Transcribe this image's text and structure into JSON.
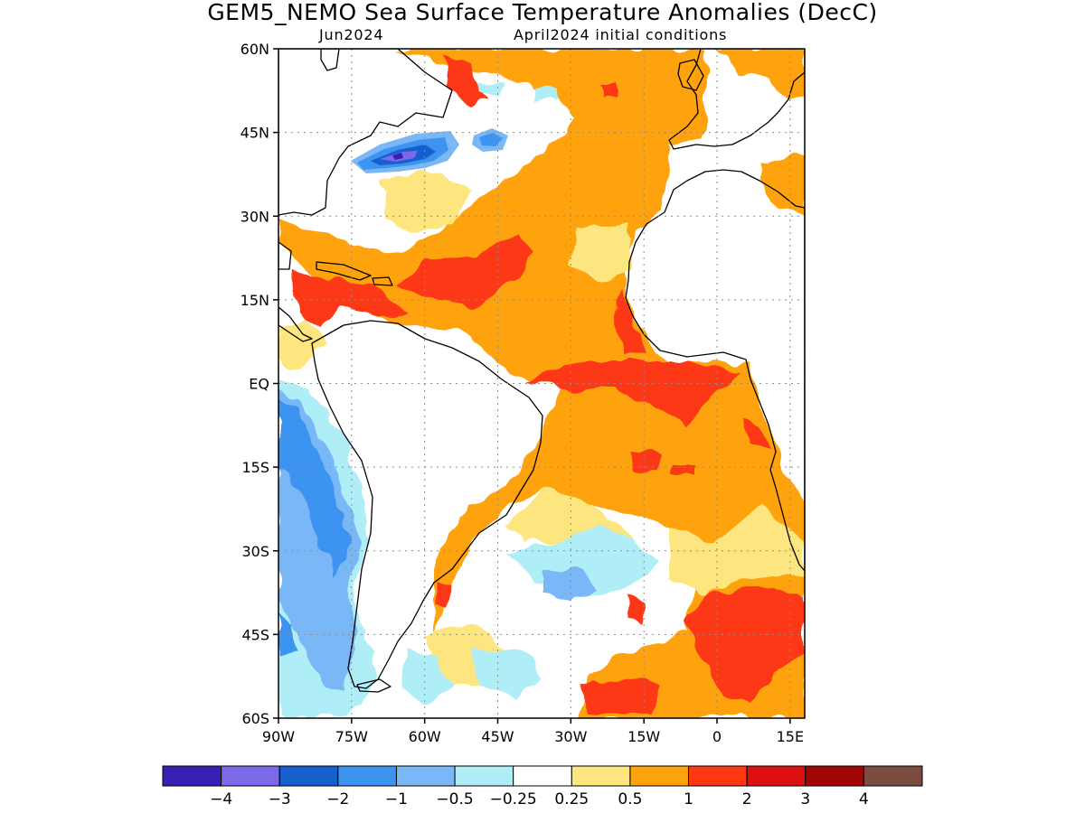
{
  "title": "GEM5_NEMO Sea Surface Temperature Anomalies (DecC)",
  "subtitle_left": "Jun2024",
  "subtitle_right": "April2024 initial conditions",
  "map": {
    "lon_range": [
      -90,
      18
    ],
    "lat_range": [
      -60,
      60
    ],
    "lon_ticks": [
      {
        "value": -90,
        "label": "90W"
      },
      {
        "value": -75,
        "label": "75W"
      },
      {
        "value": -60,
        "label": "60W"
      },
      {
        "value": -45,
        "label": "45W"
      },
      {
        "value": -30,
        "label": "30W"
      },
      {
        "value": -15,
        "label": "15W"
      },
      {
        "value": 0,
        "label": "0"
      },
      {
        "value": 15,
        "label": "15E"
      }
    ],
    "lat_ticks": [
      {
        "value": 60,
        "label": "60N"
      },
      {
        "value": 45,
        "label": "45N"
      },
      {
        "value": 30,
        "label": "30N"
      },
      {
        "value": 15,
        "label": "15N"
      },
      {
        "value": 0,
        "label": "EQ"
      },
      {
        "value": -15,
        "label": "15S"
      },
      {
        "value": -30,
        "label": "30S"
      },
      {
        "value": -45,
        "label": "45S"
      },
      {
        "value": -60,
        "label": "60S"
      }
    ],
    "grid": "dotted"
  },
  "colorbar": {
    "colors": [
      "#3a1fb4",
      "#7a6aea",
      "#155fcf",
      "#3c93f0",
      "#79b7f7",
      "#b0eef7",
      "#ffffff",
      "#fde57f",
      "#fea20e",
      "#fd3812",
      "#dc1010",
      "#a00606",
      "#7a4b3f"
    ],
    "labels": [
      "-4",
      "-3",
      "-2",
      "-1",
      "-0.5",
      "-0.25",
      "0.25",
      "0.5",
      "1",
      "2",
      "3",
      "4"
    ]
  }
}
